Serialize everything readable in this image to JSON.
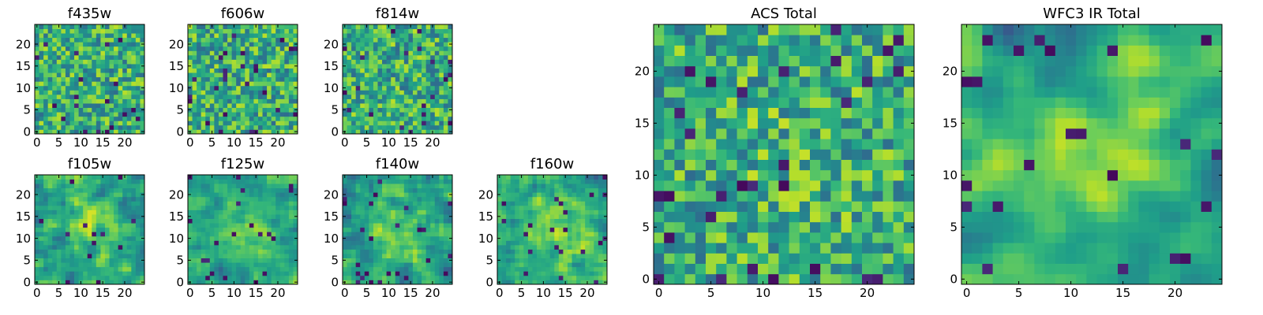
{
  "chart_data": [
    {
      "type": "heatmap",
      "title": "f435w",
      "xticks": [
        0,
        5,
        10,
        15,
        20
      ],
      "yticks": [
        0,
        5,
        10,
        15,
        20
      ],
      "grid_size": [
        25,
        25
      ],
      "smooth": 0,
      "bias": 0.0,
      "colormap": "viridis",
      "range": [
        0,
        1
      ],
      "values": []
    },
    {
      "type": "heatmap",
      "title": "f606w",
      "xticks": [
        0,
        5,
        10,
        15,
        20
      ],
      "yticks": [
        0,
        5,
        10,
        15,
        20
      ],
      "grid_size": [
        25,
        25
      ],
      "smooth": 0,
      "bias": 0.0,
      "colormap": "viridis",
      "range": [
        0,
        1
      ],
      "values": []
    },
    {
      "type": "heatmap",
      "title": "f814w",
      "xticks": [
        0,
        5,
        10,
        15,
        20
      ],
      "yticks": [
        0,
        5,
        10,
        15,
        20
      ],
      "grid_size": [
        25,
        25
      ],
      "smooth": 0,
      "bias": 0.0,
      "colormap": "viridis",
      "range": [
        0,
        1
      ],
      "values": []
    },
    {
      "type": "heatmap",
      "title": "f105w",
      "xticks": [
        0,
        5,
        10,
        15,
        20
      ],
      "yticks": [
        0,
        5,
        10,
        15,
        20
      ],
      "grid_size": [
        25,
        25
      ],
      "smooth": 1,
      "bias": 0.55,
      "colormap": "viridis",
      "range": [
        0,
        1
      ],
      "values": []
    },
    {
      "type": "heatmap",
      "title": "f125w",
      "xticks": [
        0,
        5,
        10,
        15,
        20
      ],
      "yticks": [
        0,
        5,
        10,
        15,
        20
      ],
      "grid_size": [
        25,
        25
      ],
      "smooth": 1,
      "bias": 0.45,
      "colormap": "viridis",
      "range": [
        0,
        1
      ],
      "values": []
    },
    {
      "type": "heatmap",
      "title": "f140w",
      "xticks": [
        0,
        5,
        10,
        15,
        20
      ],
      "yticks": [
        0,
        5,
        10,
        15,
        20
      ],
      "grid_size": [
        25,
        25
      ],
      "smooth": 1,
      "bias": 0.6,
      "colormap": "viridis",
      "range": [
        0,
        1
      ],
      "values": []
    },
    {
      "type": "heatmap",
      "title": "f160w",
      "xticks": [
        0,
        5,
        10,
        15,
        20
      ],
      "yticks": [
        0,
        5,
        10,
        15,
        20
      ],
      "grid_size": [
        25,
        25
      ],
      "smooth": 1,
      "bias": 0.6,
      "colormap": "viridis",
      "range": [
        0,
        1
      ],
      "values": []
    },
    {
      "type": "heatmap",
      "title": "ACS Total",
      "xticks": [
        0,
        5,
        10,
        15,
        20
      ],
      "yticks": [
        0,
        5,
        10,
        15,
        20
      ],
      "grid_size": [
        25,
        25
      ],
      "smooth": 0,
      "bias": 0.1,
      "colormap": "viridis",
      "range": [
        0,
        1
      ],
      "values": []
    },
    {
      "type": "heatmap",
      "title": "WFC3 IR Total",
      "xticks": [
        0,
        5,
        10,
        15,
        20
      ],
      "yticks": [
        0,
        5,
        10,
        15,
        20
      ],
      "grid_size": [
        25,
        25
      ],
      "smooth": 2,
      "bias": 0.75,
      "colormap": "viridis",
      "range": [
        0,
        1
      ],
      "values": []
    }
  ]
}
